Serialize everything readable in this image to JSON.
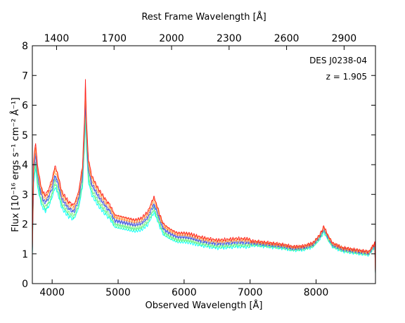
{
  "chart_data": {
    "type": "line",
    "title": "",
    "xlabel": "Observed Wavelength [Å]",
    "ylabel": "Flux [10⁻¹⁶ ergs s⁻¹ cm⁻² Å⁻¹]",
    "top_xlabel": "Rest Frame Wavelength [Å]",
    "xlim": [
      3700,
      8900
    ],
    "ylim": [
      0,
      8
    ],
    "x_ticks": [
      4000,
      5000,
      6000,
      7000,
      8000
    ],
    "y_ticks": [
      0,
      1,
      2,
      3,
      4,
      5,
      6,
      7,
      8
    ],
    "top_ticks": [
      1400,
      1700,
      2000,
      2300,
      2600,
      2900
    ],
    "redshift": 1.905,
    "annotations": [
      "DES J0238-04",
      "z = 1.905"
    ],
    "grid": false,
    "legend": "none",
    "base_spectrum": [
      [
        3700,
        1.0
      ],
      [
        3720,
        3.8
      ],
      [
        3750,
        4.3
      ],
      [
        3780,
        3.6
      ],
      [
        3820,
        3.1
      ],
      [
        3860,
        2.8
      ],
      [
        3900,
        2.7
      ],
      [
        3950,
        2.9
      ],
      [
        4000,
        3.2
      ],
      [
        4040,
        3.6
      ],
      [
        4080,
        3.4
      ],
      [
        4150,
        2.8
      ],
      [
        4250,
        2.5
      ],
      [
        4330,
        2.4
      ],
      [
        4400,
        2.8
      ],
      [
        4460,
        3.6
      ],
      [
        4490,
        5.0
      ],
      [
        4505,
        6.2
      ],
      [
        4520,
        5.0
      ],
      [
        4550,
        3.8
      ],
      [
        4600,
        3.3
      ],
      [
        4700,
        2.9
      ],
      [
        4800,
        2.6
      ],
      [
        4880,
        2.4
      ],
      [
        4950,
        2.1
      ],
      [
        5050,
        2.05
      ],
      [
        5150,
        2.0
      ],
      [
        5250,
        1.95
      ],
      [
        5350,
        2.0
      ],
      [
        5450,
        2.2
      ],
      [
        5510,
        2.5
      ],
      [
        5540,
        2.65
      ],
      [
        5580,
        2.45
      ],
      [
        5650,
        2.0
      ],
      [
        5700,
        1.8
      ],
      [
        5800,
        1.65
      ],
      [
        5900,
        1.55
      ],
      [
        6000,
        1.55
      ],
      [
        6100,
        1.52
      ],
      [
        6200,
        1.45
      ],
      [
        6350,
        1.38
      ],
      [
        6500,
        1.33
      ],
      [
        6650,
        1.35
      ],
      [
        6800,
        1.38
      ],
      [
        6950,
        1.37
      ],
      [
        7100,
        1.35
      ],
      [
        7300,
        1.3
      ],
      [
        7500,
        1.25
      ],
      [
        7650,
        1.18
      ],
      [
        7800,
        1.2
      ],
      [
        7950,
        1.3
      ],
      [
        8050,
        1.55
      ],
      [
        8120,
        1.83
      ],
      [
        8180,
        1.55
      ],
      [
        8250,
        1.3
      ],
      [
        8400,
        1.15
      ],
      [
        8600,
        1.08
      ],
      [
        8800,
        1.02
      ],
      [
        8890,
        1.3
      ],
      [
        8900,
        0.3
      ]
    ],
    "series": [
      {
        "color": "#00ffff",
        "scale": 0.9
      },
      {
        "color": "#40ff99",
        "scale": 0.93
      },
      {
        "color": "#80e880",
        "scale": 0.96
      },
      {
        "color": "#3366ff",
        "scale": 1.0
      },
      {
        "color": "#5555cc",
        "scale": 1.02
      },
      {
        "color": "#ffb060",
        "scale": 1.05
      },
      {
        "color": "#ff8030",
        "scale": 1.08
      },
      {
        "color": "#ff2020",
        "scale": 1.1
      }
    ]
  }
}
